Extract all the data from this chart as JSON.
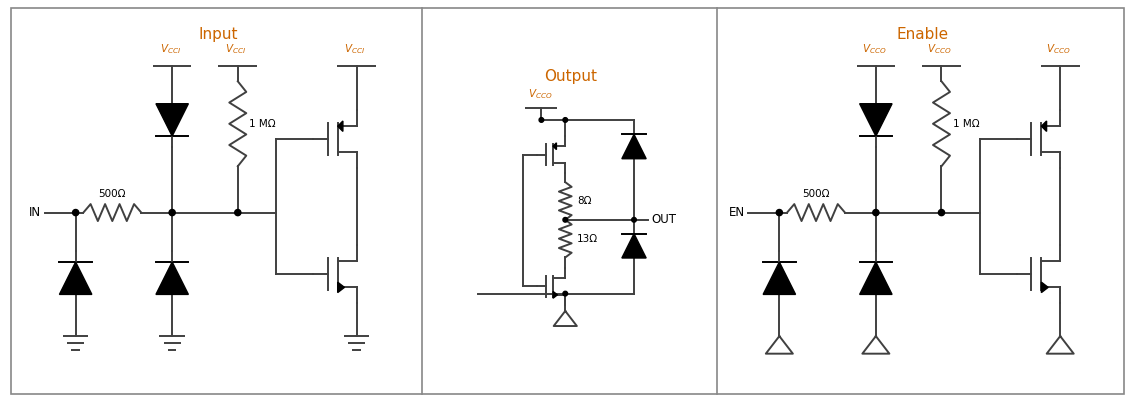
{
  "title_input": "Input",
  "title_output": "Output",
  "title_enable": "Enable",
  "label_in": "IN",
  "label_out": "OUT",
  "label_en": "EN",
  "resistor_500": "500Ω",
  "resistor_1M": "1 MΩ",
  "resistor_8": "8Ω",
  "resistor_13": "13Ω",
  "title_color": "#cc6600",
  "line_color": "#404040",
  "text_color": "#000000",
  "vcc_color": "#cc6600",
  "bg_color": "#ffffff",
  "fig_width": 11.35,
  "fig_height": 3.98,
  "lw": 1.4
}
